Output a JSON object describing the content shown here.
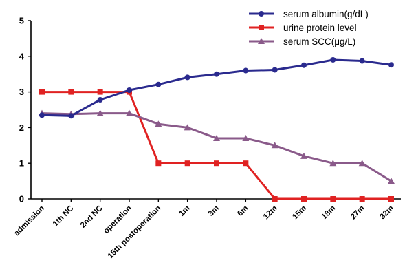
{
  "chart_data": {
    "type": "line",
    "categories": [
      "admission",
      "1th NC",
      "2nd NC",
      "operation",
      "15th postoperation",
      "1m",
      "3m",
      "6m",
      "12m",
      "15m",
      "18m",
      "27m",
      "32m"
    ],
    "ylim": [
      0,
      5
    ],
    "yticks": [
      0,
      1,
      2,
      3,
      4,
      5
    ],
    "grid": false,
    "legend_position": "top-right",
    "series": [
      {
        "name": "serum albumin(g/dL)",
        "color": "#2a2a8e",
        "marker": "circle",
        "values": [
          2.35,
          2.33,
          2.78,
          3.05,
          3.21,
          3.41,
          3.5,
          3.6,
          3.62,
          3.75,
          3.9,
          3.87,
          3.76
        ]
      },
      {
        "name": "urine protein level",
        "color": "#e02222",
        "marker": "square",
        "values": [
          3,
          3,
          3,
          3,
          1,
          1,
          1,
          1,
          0,
          0,
          0,
          0,
          0
        ]
      },
      {
        "name": "serum SCC(μg/L)",
        "color": "#8a5a8a",
        "marker": "triangle",
        "values": [
          2.4,
          2.38,
          2.4,
          2.4,
          2.1,
          2.0,
          1.7,
          1.7,
          1.5,
          1.2,
          1.0,
          1.0,
          0.5
        ]
      }
    ]
  }
}
